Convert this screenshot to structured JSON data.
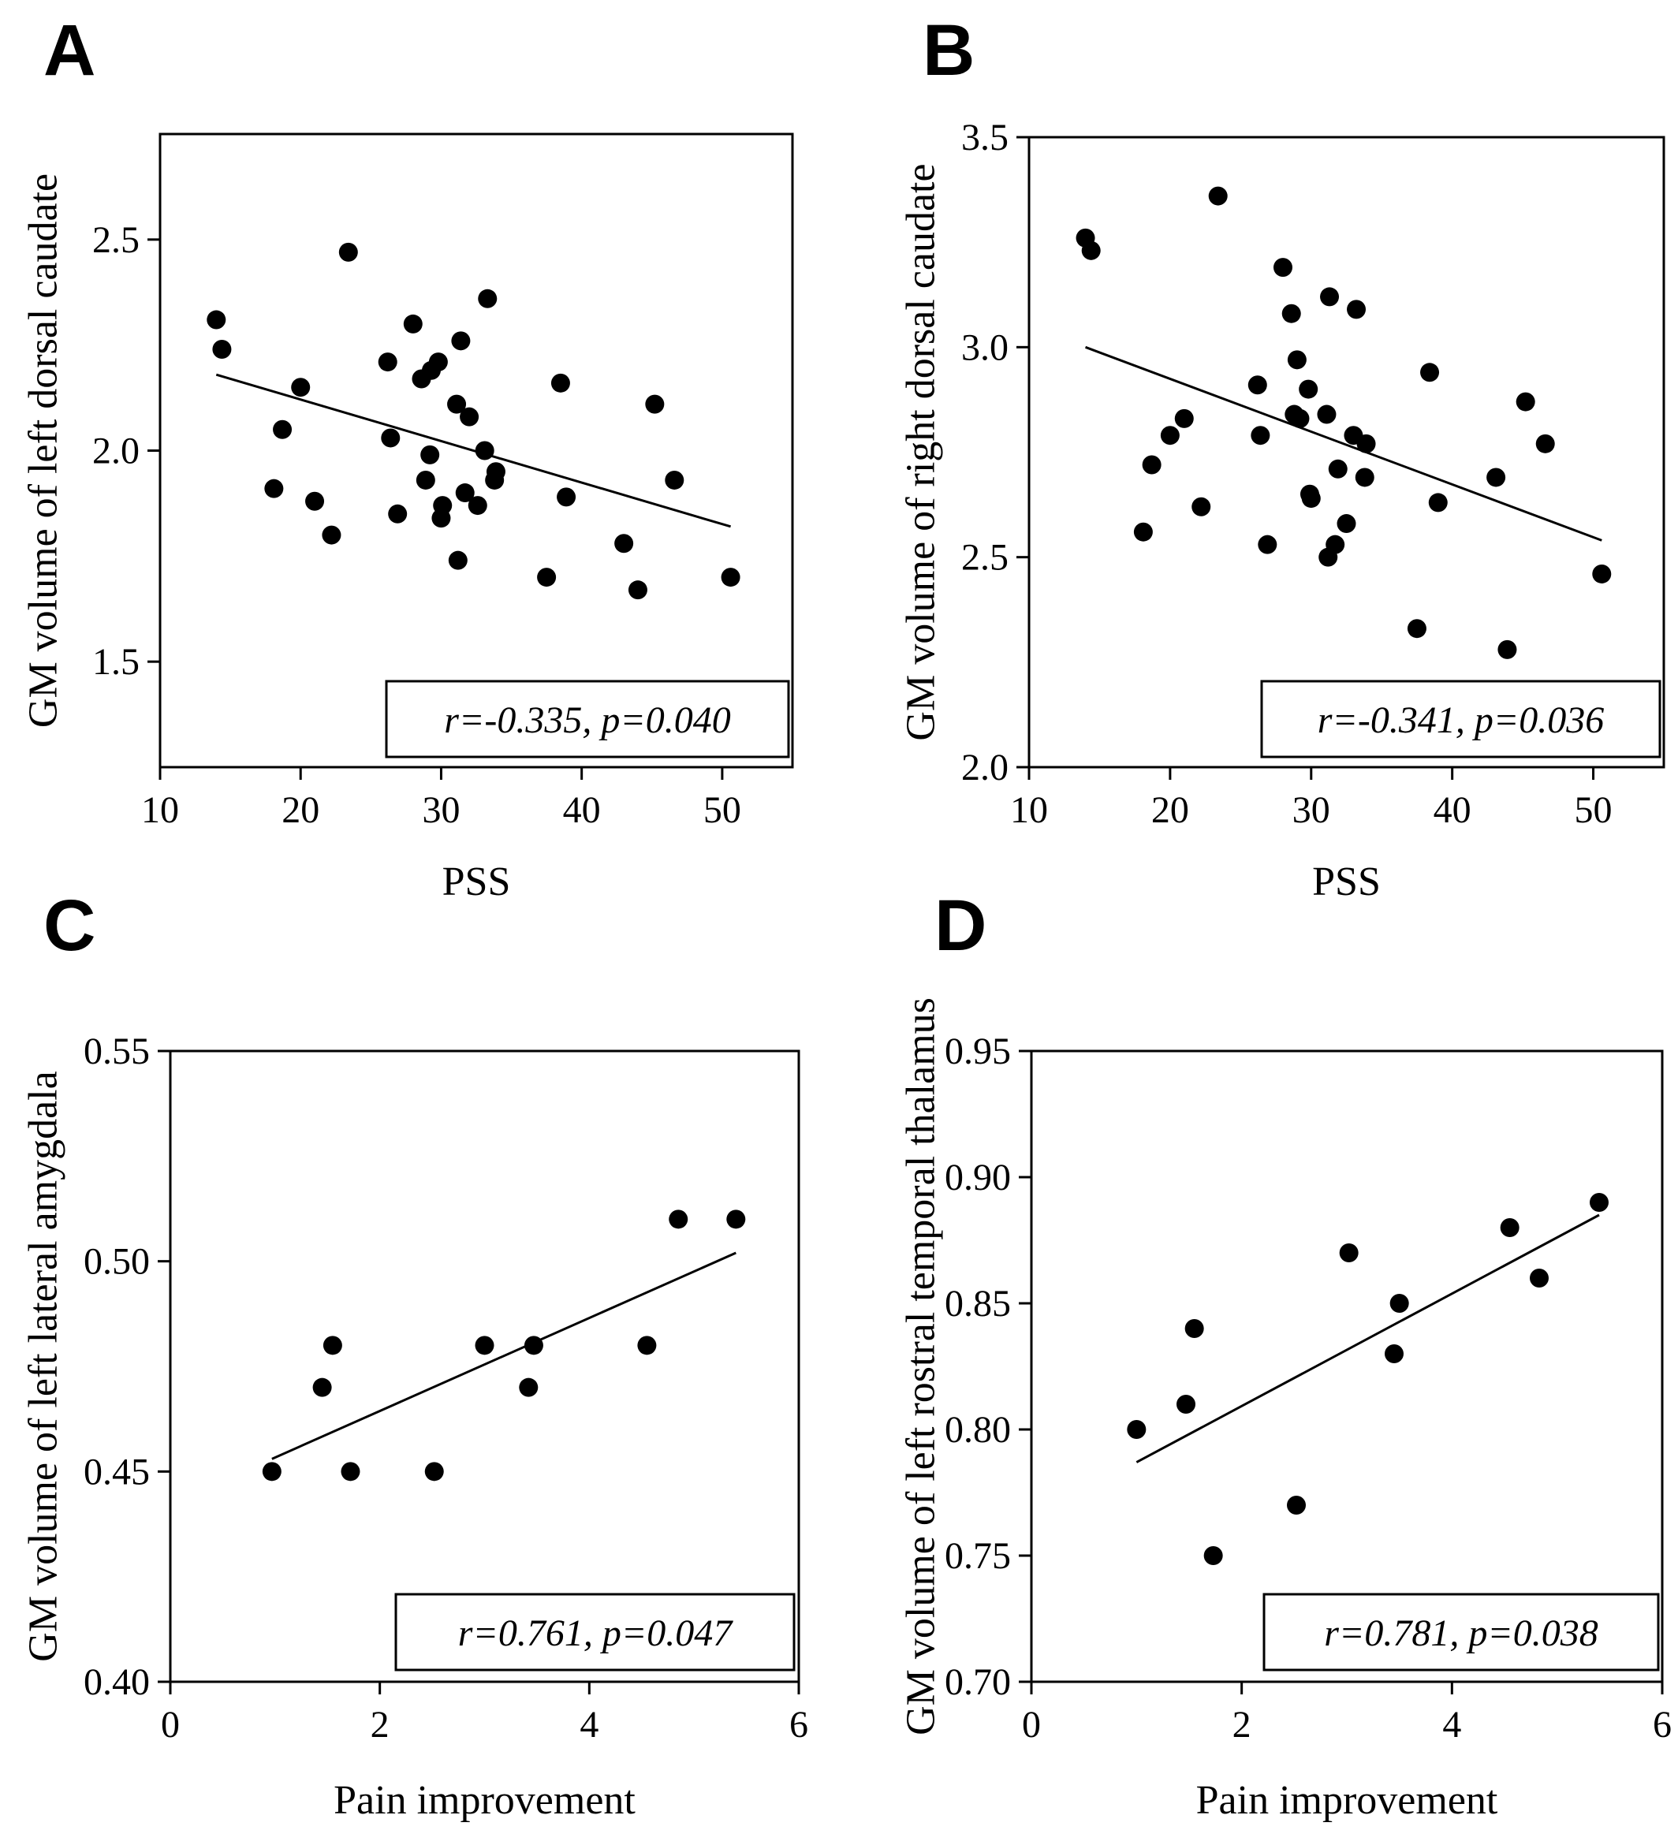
{
  "chart_data": [
    {
      "panel": "A",
      "type": "scatter",
      "xlabel": "PSS",
      "ylabel": "GM volume of left dorsal caudate",
      "xlim": [
        10,
        55
      ],
      "ylim": [
        1.25,
        2.75
      ],
      "xticks": [
        10,
        20,
        30,
        40,
        50
      ],
      "yticks": [
        1.5,
        2.0,
        2.5
      ],
      "x": [
        14.0,
        14.4,
        18.1,
        18.7,
        20.0,
        21.0,
        22.2,
        23.4,
        26.2,
        26.4,
        26.9,
        28.0,
        28.6,
        28.9,
        29.2,
        29.3,
        29.8,
        30.0,
        30.1,
        31.1,
        31.2,
        31.4,
        31.7,
        32.0,
        32.6,
        33.1,
        33.3,
        33.8,
        33.9,
        37.5,
        38.5,
        38.9,
        43.0,
        44.0,
        45.2,
        46.6,
        50.6
      ],
      "y": [
        2.31,
        2.24,
        1.91,
        2.05,
        2.15,
        1.88,
        1.8,
        2.47,
        2.21,
        2.03,
        1.85,
        2.3,
        2.17,
        1.93,
        1.99,
        2.19,
        2.21,
        1.84,
        1.87,
        2.11,
        1.74,
        2.26,
        1.9,
        2.08,
        1.87,
        2.0,
        2.36,
        1.93,
        1.95,
        1.7,
        2.16,
        1.89,
        1.78,
        1.67,
        2.11,
        1.93,
        1.7
      ],
      "fit_line": {
        "x": [
          14.0,
          50.6
        ],
        "y": [
          2.18,
          1.82
        ]
      },
      "annotation": "r=-0.335, p=0.040",
      "grid": false
    },
    {
      "panel": "B",
      "type": "scatter",
      "xlabel": "PSS",
      "ylabel": "GM volume of right dorsal caudate",
      "xlim": [
        10,
        55
      ],
      "ylim": [
        2.0,
        3.5
      ],
      "xticks": [
        10,
        20,
        30,
        40,
        50
      ],
      "yticks": [
        2.0,
        2.5,
        3.0,
        3.5
      ],
      "x": [
        14.0,
        14.4,
        18.1,
        18.7,
        20.0,
        21.0,
        22.2,
        23.4,
        26.2,
        26.4,
        26.9,
        28.0,
        28.6,
        28.8,
        29.0,
        29.2,
        29.8,
        29.9,
        30.0,
        31.1,
        31.2,
        31.3,
        31.7,
        31.9,
        32.5,
        33.0,
        33.2,
        33.8,
        33.9,
        37.5,
        38.4,
        39.0,
        43.1,
        43.9,
        45.2,
        46.6,
        50.6
      ],
      "y": [
        3.26,
        3.23,
        2.56,
        2.72,
        2.79,
        2.83,
        2.62,
        3.36,
        2.91,
        2.79,
        2.53,
        3.19,
        3.08,
        2.84,
        2.97,
        2.83,
        2.9,
        2.65,
        2.64,
        2.84,
        2.5,
        3.12,
        2.53,
        2.71,
        2.58,
        2.79,
        3.09,
        2.69,
        2.77,
        2.33,
        2.94,
        2.63,
        2.69,
        2.28,
        2.87,
        2.77,
        2.46
      ],
      "fit_line": {
        "x": [
          14.0,
          50.6
        ],
        "y": [
          3.0,
          2.54
        ]
      },
      "annotation": "r=-0.341, p=0.036",
      "grid": false
    },
    {
      "panel": "C",
      "type": "scatter",
      "xlabel": "Pain improvement",
      "ylabel": "GM volume of left lateral amygdala",
      "xlim": [
        0,
        6
      ],
      "ylim": [
        0.4,
        0.55
      ],
      "xticks": [
        0,
        2,
        4,
        6
      ],
      "yticks": [
        0.4,
        0.45,
        0.5,
        0.55
      ],
      "x": [
        0.97,
        1.45,
        1.55,
        1.72,
        2.52,
        3.0,
        3.42,
        3.47,
        4.55,
        4.85,
        5.4
      ],
      "y": [
        0.45,
        0.47,
        0.48,
        0.45,
        0.45,
        0.48,
        0.47,
        0.48,
        0.48,
        0.51,
        0.51
      ],
      "fit_line": {
        "x": [
          0.97,
          5.4
        ],
        "y": [
          0.453,
          0.502
        ]
      },
      "annotation": "r=0.761, p=0.047",
      "grid": false
    },
    {
      "panel": "D",
      "type": "scatter",
      "xlabel": "Pain improvement",
      "ylabel": "GM volume of left rostral temporal thalamus",
      "xlim": [
        0,
        6
      ],
      "ylim": [
        0.7,
        0.95
      ],
      "xticks": [
        0,
        2,
        4,
        6
      ],
      "yticks": [
        0.7,
        0.75,
        0.8,
        0.85,
        0.9,
        0.95
      ],
      "x": [
        1.0,
        1.47,
        1.55,
        1.73,
        2.52,
        3.02,
        3.45,
        3.5,
        4.55,
        4.83,
        5.4
      ],
      "y": [
        0.8,
        0.81,
        0.84,
        0.75,
        0.77,
        0.87,
        0.83,
        0.85,
        0.88,
        0.86,
        0.89
      ],
      "fit_line": {
        "x": [
          1.0,
          5.4
        ],
        "y": [
          0.787,
          0.885
        ]
      },
      "annotation": "r=0.781, p=0.038",
      "grid": false
    }
  ]
}
